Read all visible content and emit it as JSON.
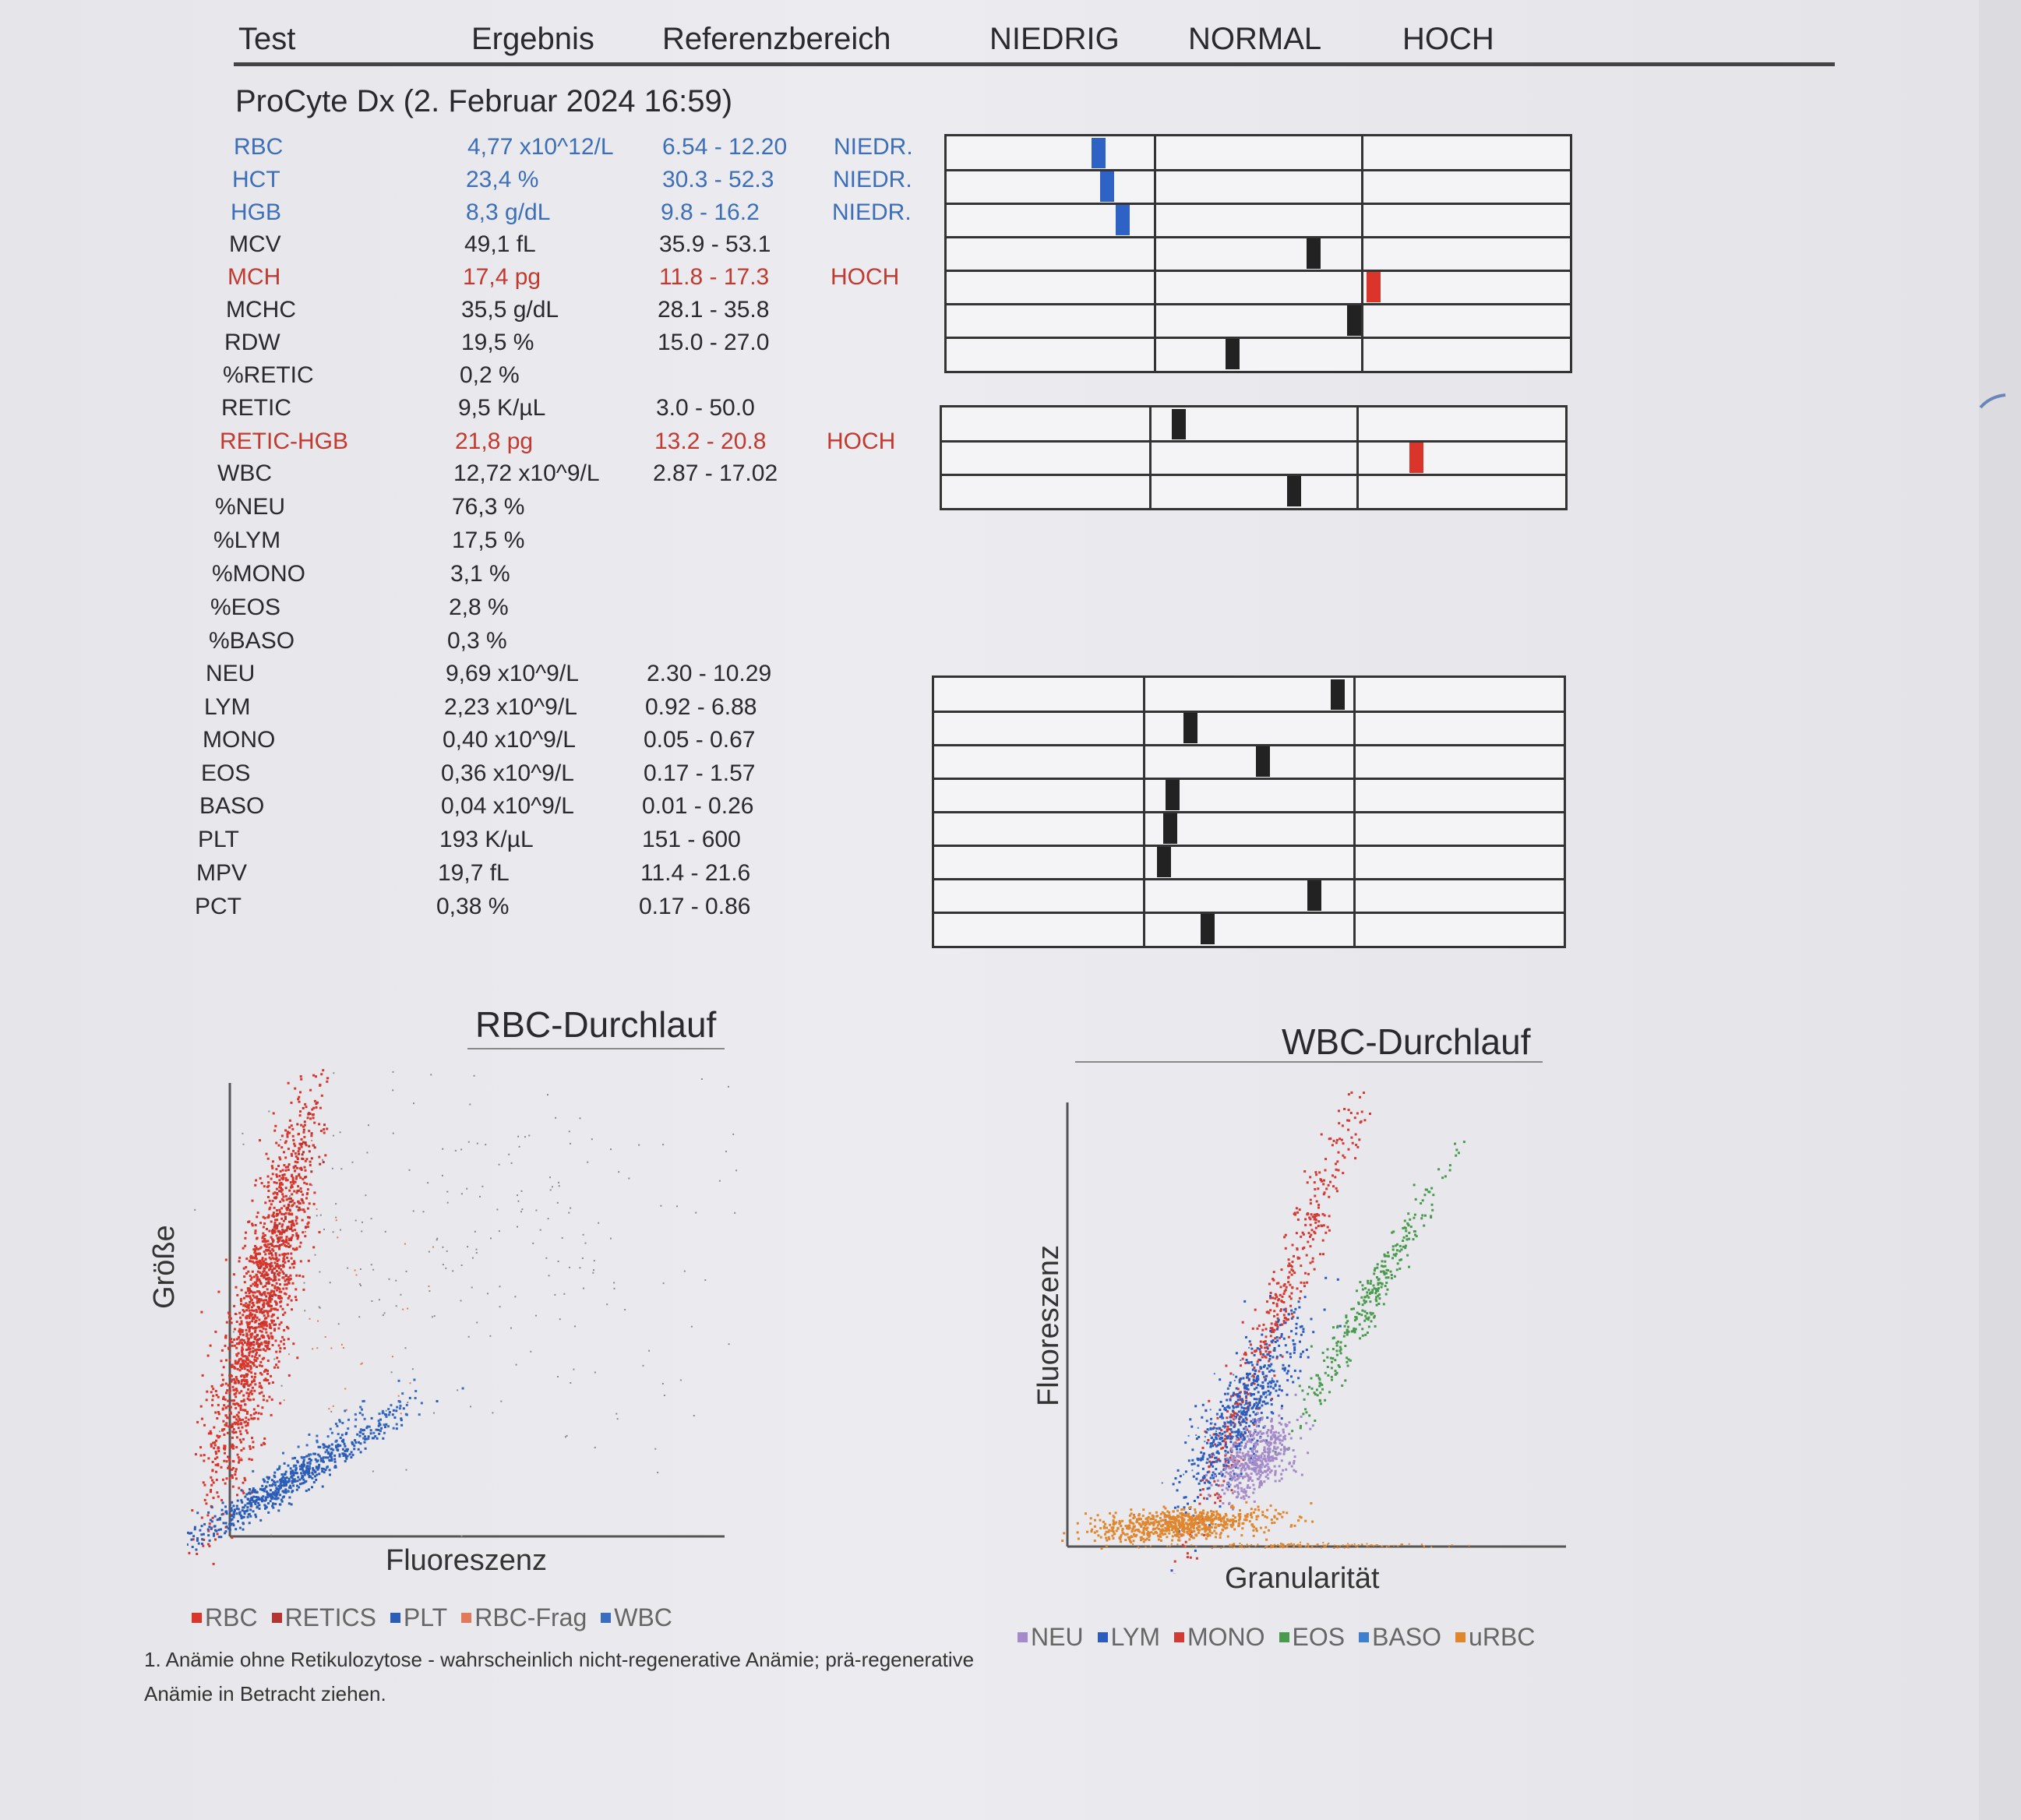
{
  "header": {
    "test": "Test",
    "result": "Ergebnis",
    "reference": "Referenzbereich",
    "low": "NIEDRIG",
    "normal": "NORMAL",
    "high": "HOCH"
  },
  "instrument": "ProCyte Dx (2. Februar 2024 16:59)",
  "rows": [
    {
      "test": "RBC",
      "result": "4,77 x10^12/L",
      "ref": "6.54 - 12.20",
      "flag": "NIEDR.",
      "status": "low"
    },
    {
      "test": "HCT",
      "result": "23,4 %",
      "ref": "30.3 - 52.3",
      "flag": "NIEDR.",
      "status": "low"
    },
    {
      "test": "HGB",
      "result": "8,3 g/dL",
      "ref": "9.8 - 16.2",
      "flag": "NIEDR.",
      "status": "low"
    },
    {
      "test": "MCV",
      "result": "49,1 fL",
      "ref": "35.9 - 53.1",
      "flag": "",
      "status": "normal"
    },
    {
      "test": "MCH",
      "result": "17,4 pg",
      "ref": "11.8 - 17.3",
      "flag": "HOCH",
      "status": "high"
    },
    {
      "test": "MCHC",
      "result": "35,5 g/dL",
      "ref": "28.1 - 35.8",
      "flag": "",
      "status": "normal"
    },
    {
      "test": "RDW",
      "result": "19,5 %",
      "ref": "15.0 - 27.0",
      "flag": "",
      "status": "normal"
    },
    {
      "test": "%RETIC",
      "result": "0,2 %",
      "ref": "",
      "flag": "",
      "status": "normal"
    },
    {
      "test": "RETIC",
      "result": "9,5 K/µL",
      "ref": "3.0 - 50.0",
      "flag": "",
      "status": "normal"
    },
    {
      "test": "RETIC-HGB",
      "result": "21,8 pg",
      "ref": "13.2 - 20.8",
      "flag": "HOCH",
      "status": "high"
    },
    {
      "test": "WBC",
      "result": "12,72 x10^9/L",
      "ref": "2.87 - 17.02",
      "flag": "",
      "status": "normal"
    },
    {
      "test": "%NEU",
      "result": "76,3 %",
      "ref": "",
      "flag": "",
      "status": "normal"
    },
    {
      "test": "%LYM",
      "result": "17,5 %",
      "ref": "",
      "flag": "",
      "status": "normal"
    },
    {
      "test": "%MONO",
      "result": "3,1 %",
      "ref": "",
      "flag": "",
      "status": "normal"
    },
    {
      "test": "%EOS",
      "result": "2,8 %",
      "ref": "",
      "flag": "",
      "status": "normal"
    },
    {
      "test": "%BASO",
      "result": "0,3 %",
      "ref": "",
      "flag": "",
      "status": "normal"
    },
    {
      "test": "NEU",
      "result": "9,69 x10^9/L",
      "ref": "2.30 - 10.29",
      "flag": "",
      "status": "normal"
    },
    {
      "test": "LYM",
      "result": "2,23 x10^9/L",
      "ref": "0.92 - 6.88",
      "flag": "",
      "status": "normal"
    },
    {
      "test": "MONO",
      "result": "0,40 x10^9/L",
      "ref": "0.05 - 0.67",
      "flag": "",
      "status": "normal"
    },
    {
      "test": "EOS",
      "result": "0,36 x10^9/L",
      "ref": "0.17 - 1.57",
      "flag": "",
      "status": "normal"
    },
    {
      "test": "BASO",
      "result": "0,04 x10^9/L",
      "ref": "0.01 - 0.26",
      "flag": "",
      "status": "normal"
    },
    {
      "test": "PLT",
      "result": "193 K/µL",
      "ref": "151 - 600",
      "flag": "",
      "status": "normal"
    },
    {
      "test": "MPV",
      "result": "19,7 fL",
      "ref": "11.4 - 21.6",
      "flag": "",
      "status": "normal"
    },
    {
      "test": "PCT",
      "result": "0,38 %",
      "ref": "0.17 - 0.86",
      "flag": "",
      "status": "normal"
    }
  ],
  "rbc_plot": {
    "title": "RBC-Durchlauf",
    "xlabel": "Fluoreszenz",
    "ylabel": "Größe",
    "legend": [
      "RBC",
      "RETICS",
      "PLT",
      "RBC-Frag",
      "WBC"
    ]
  },
  "wbc_plot": {
    "title": "WBC-Durchlauf",
    "xlabel": "Granularität",
    "ylabel": "Fluoreszenz",
    "legend": [
      "NEU",
      "LYM",
      "MONO",
      "EOS",
      "BASO",
      "uRBC"
    ]
  },
  "footnote": "1. Anämie ohne Retikulozytose - wahrscheinlich nicht-regenerative Anämie; prä-regenerative Anämie in Betracht ziehen.",
  "colors": {
    "low": "#3c6fb8",
    "high": "#c2392f",
    "marker_low": "#2e62c4",
    "marker_high": "#d9352b",
    "marker_normal": "#222222",
    "rbc": "#d9352b",
    "retics": "#b5342f",
    "plt": "#2a5cb8",
    "rbc_frag": "#e07a5a",
    "wbc": "#3a6cc0",
    "neu": "#a48ac9",
    "lym": "#2b5cc0",
    "mono": "#d33a34",
    "eos": "#4a9a4e",
    "baso": "#3f7fcf",
    "urbc": "#e0862e"
  }
}
